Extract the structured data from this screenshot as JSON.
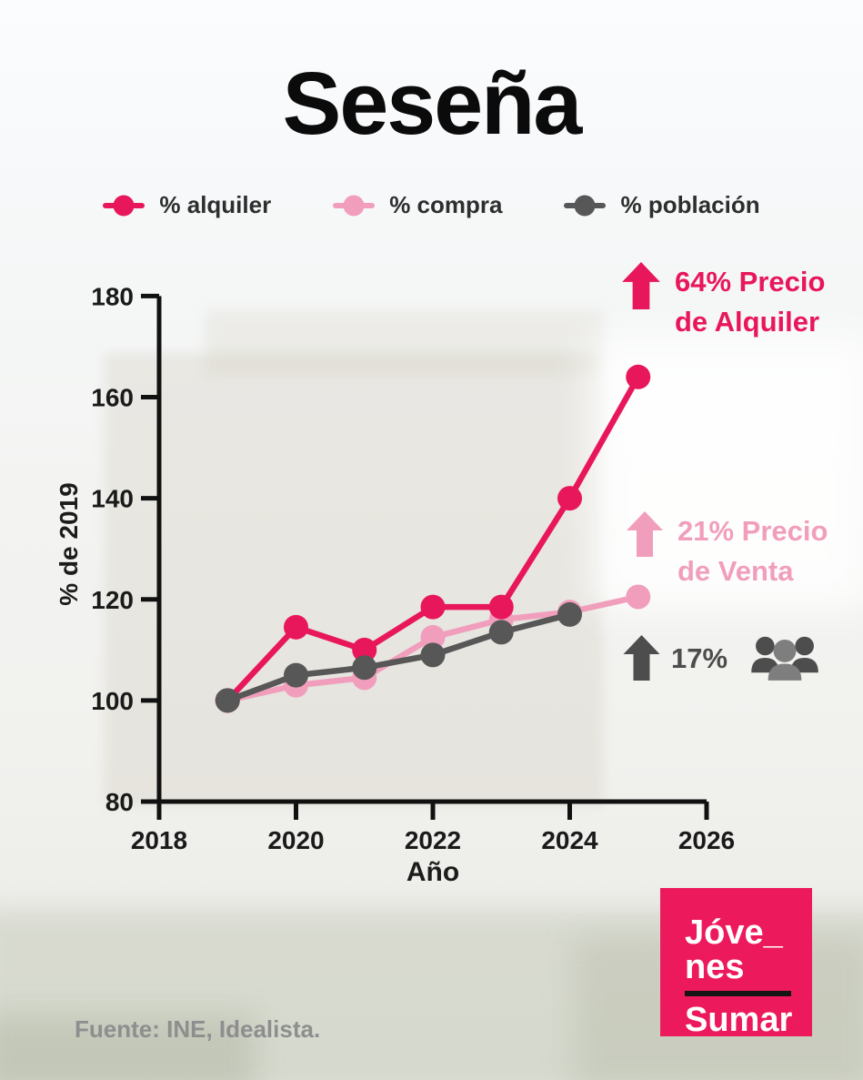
{
  "title": "Seseña",
  "palette": {
    "alquiler": "#E8175B",
    "compra": "#F19EBD",
    "poblacion": "#575757",
    "axis": "#111111",
    "logo_bg": "#EC1A5C",
    "people_dark": "#4D4D4D",
    "people_light": "#7E7E7E"
  },
  "legend": {
    "items": [
      {
        "label": "% alquiler",
        "color": "#E8175B"
      },
      {
        "label": "% compra",
        "color": "#F19EBD"
      },
      {
        "label": "% población",
        "color": "#575757"
      }
    ]
  },
  "chart_data": {
    "type": "line",
    "x": [
      2019,
      2020,
      2021,
      2022,
      2023,
      2024,
      2025
    ],
    "series": [
      {
        "name": "% compra",
        "color": "#F19EBD",
        "values": [
          100,
          103,
          104.5,
          112.5,
          116,
          117.5,
          120.5
        ]
      },
      {
        "name": "% alquiler",
        "color": "#E8175B",
        "values": [
          100,
          114.5,
          110,
          118.5,
          118.5,
          140,
          164
        ]
      },
      {
        "name": "% población",
        "color": "#575757",
        "values": [
          100,
          105,
          106.5,
          109,
          113.5,
          117
        ]
      }
    ],
    "title": "Seseña",
    "xlabel": "Año",
    "ylabel": "% de 2019",
    "xlim": [
      2018,
      2026
    ],
    "ylim": [
      80,
      180
    ],
    "xticks": [
      2018,
      2020,
      2022,
      2024,
      2026
    ],
    "yticks": [
      80,
      100,
      120,
      140,
      160,
      180
    ],
    "grid": false,
    "legend_position": "top"
  },
  "annotations": [
    {
      "line1": "64% Precio",
      "line2": "de Alquiler",
      "color": "#E8175B"
    },
    {
      "line1": "21% Precio",
      "line2": "de Venta",
      "color": "#F19EBD"
    },
    {
      "line1": "17%",
      "line2": "",
      "color": "#4D4D4D"
    }
  ],
  "logo": {
    "line1": "Jóve_",
    "line2": "nes",
    "line3": "Sumar",
    "bg": "#EC1A5C"
  },
  "source": "Fuente: INE, Idealista."
}
